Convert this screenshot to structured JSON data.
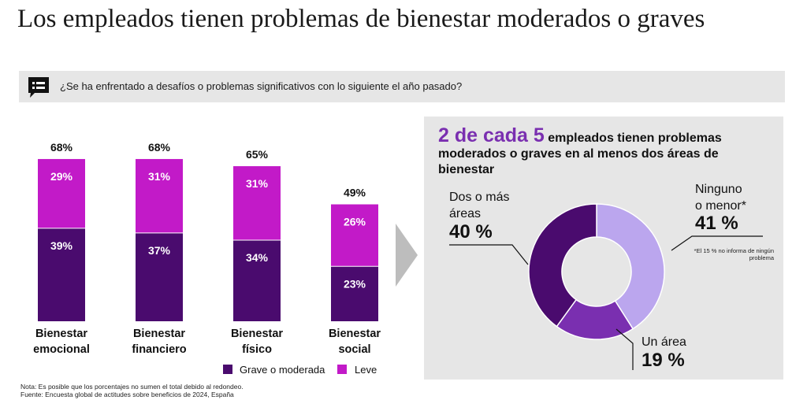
{
  "title": "Los empleados tienen problemas de bienestar moderados o graves",
  "question": {
    "icon": "chat-list-icon",
    "text": "¿Se ha enfrentado a desafíos o problemas significativos con lo siguiente el año pasado?"
  },
  "colors": {
    "grave": "#4a0b6e",
    "leve": "#c21ac8",
    "donut_dark": "#4a0b6e",
    "donut_mid": "#7a2fb0",
    "donut_light": "#bba6ee",
    "accent": "#7a2fb0"
  },
  "chart_data": [
    {
      "type": "bar",
      "stacked": true,
      "categories": [
        "Bienestar emocional",
        "Bienestar financiero",
        "Bienestar físico",
        "Bienestar social"
      ],
      "category_lines": [
        [
          "Bienestar",
          "emocional"
        ],
        [
          "Bienestar",
          "financiero"
        ],
        [
          "Bienestar",
          "físico"
        ],
        [
          "Bienestar",
          "social"
        ]
      ],
      "series": [
        {
          "name": "Grave o moderada",
          "values": [
            39,
            37,
            34,
            23
          ],
          "labels": [
            "39%",
            "37%",
            "34%",
            "23%"
          ]
        },
        {
          "name": "Leve",
          "values": [
            29,
            31,
            31,
            26
          ],
          "labels": [
            "29%",
            "31%",
            "31%",
            "26%"
          ]
        }
      ],
      "totals": [
        68,
        68,
        65,
        49
      ],
      "total_labels": [
        "68%",
        "68%",
        "65%",
        "49%"
      ],
      "ylim": [
        0,
        70
      ],
      "grid": false,
      "legend": "bottom"
    },
    {
      "type": "pie",
      "donut": true,
      "slices": [
        {
          "label_lines": [
            "Ninguno",
            "o menor*"
          ],
          "value": 41,
          "value_label": "41 %"
        },
        {
          "label_lines": [
            "Un área"
          ],
          "value": 19,
          "value_label": "19 %"
        },
        {
          "label_lines": [
            "Dos o más",
            "áreas"
          ],
          "value": 40,
          "value_label": "40 %"
        }
      ]
    }
  ],
  "legend": {
    "grave": "Grave o moderada",
    "leve": "Leve"
  },
  "highlight": {
    "big": "2 de cada 5",
    "rest": " empleados tienen problemas moderados o graves en al menos dos áreas de bienestar"
  },
  "footnote_donut": "*El 15 % no informa de ningún problema",
  "notes": {
    "nota": "Nota: Es posible que los porcentajes no sumen el total debido al redondeo.",
    "fuente": "Fuente: Encuesta global de actitudes sobre beneficios de 2024, España"
  }
}
